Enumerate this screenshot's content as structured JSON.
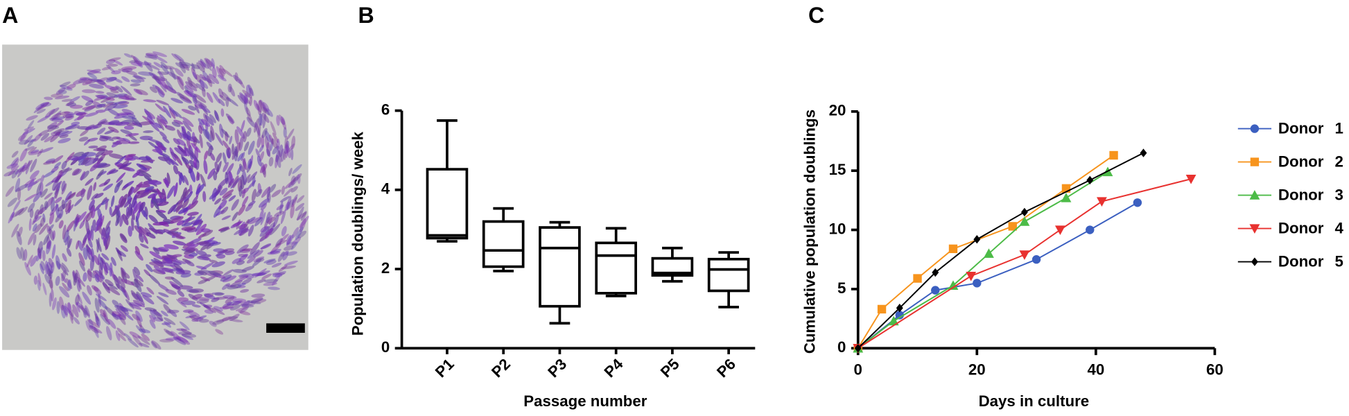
{
  "panel_labels": [
    "A",
    "B",
    "C"
  ],
  "chart_data": [
    {
      "type": "box",
      "ylabel": "Population doublings/ week",
      "xlabel": "Passage number",
      "categories": [
        "P1",
        "P2",
        "P3",
        "P4",
        "P5",
        "P6"
      ],
      "boxes": [
        {
          "min": 2.7,
          "q1": 2.78,
          "median": 2.85,
          "q3": 4.52,
          "max": 5.75
        },
        {
          "min": 1.95,
          "q1": 2.06,
          "median": 2.47,
          "q3": 3.2,
          "max": 3.53
        },
        {
          "min": 0.63,
          "q1": 1.06,
          "median": 2.53,
          "q3": 3.05,
          "max": 3.18
        },
        {
          "min": 1.32,
          "q1": 1.39,
          "median": 2.34,
          "q3": 2.66,
          "max": 3.03
        },
        {
          "min": 1.69,
          "q1": 1.84,
          "median": 1.9,
          "q3": 2.27,
          "max": 2.53
        },
        {
          "min": 1.04,
          "q1": 1.45,
          "median": 1.99,
          "q3": 2.25,
          "max": 2.42
        }
      ],
      "color": "#000000",
      "ylim": [
        0,
        6
      ],
      "yticks": [
        0,
        2,
        4,
        6
      ]
    },
    {
      "type": "line",
      "ylabel": "Cumulative population doublings",
      "xlabel": "Days in culture",
      "xlim": [
        0,
        60
      ],
      "xticks": [
        0,
        20,
        40,
        60
      ],
      "ylim": [
        0,
        20
      ],
      "yticks": [
        0,
        5,
        10,
        15,
        20
      ],
      "series": [
        {
          "name": "Donor 1",
          "color": "#3b5fc0",
          "marker": "circle",
          "x": [
            0,
            7,
            13,
            20,
            30,
            39,
            47
          ],
          "values": [
            0,
            2.8,
            4.9,
            5.5,
            7.5,
            10,
            12.3
          ]
        },
        {
          "name": "Donor 2",
          "color": "#f7941d",
          "marker": "square",
          "x": [
            0,
            4,
            10,
            16,
            26,
            35,
            43
          ],
          "values": [
            0,
            3.3,
            5.9,
            8.4,
            10.3,
            13.5,
            16.3
          ]
        },
        {
          "name": "Donor 3",
          "color": "#4cbb47",
          "marker": "triangle-up",
          "x": [
            0,
            6,
            16,
            22,
            28,
            35,
            42
          ],
          "values": [
            0,
            2.3,
            5.3,
            8,
            10.7,
            12.7,
            14.9
          ]
        },
        {
          "name": "Donor 4",
          "color": "#e8312f",
          "marker": "triangle-down",
          "x": [
            0,
            19,
            28,
            34,
            41,
            56
          ],
          "values": [
            0,
            6.1,
            7.9,
            10,
            12.4,
            14.3
          ]
        },
        {
          "name": "Donor 5",
          "color": "#000000",
          "marker": "diamond",
          "x": [
            0,
            7,
            13,
            20,
            28,
            39,
            48
          ],
          "values": [
            0,
            3.4,
            6.4,
            9.2,
            11.5,
            14.2,
            16.5
          ]
        }
      ]
    }
  ]
}
